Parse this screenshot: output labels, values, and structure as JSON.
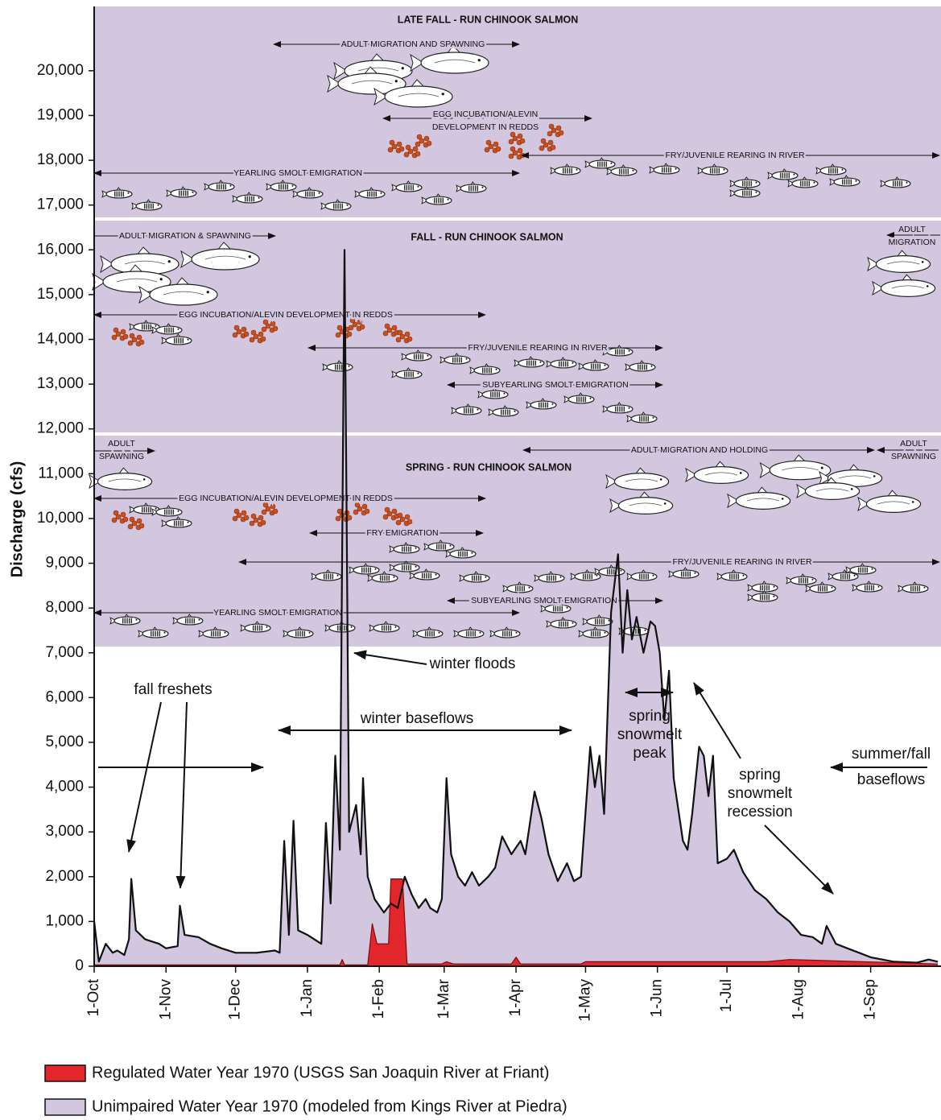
{
  "chart_data": {
    "type": "area",
    "y_label": "Discharge (cfs)",
    "xlim": [
      0,
      365
    ],
    "xticks": [
      {
        "value": 0,
        "label": "1-Oct"
      },
      {
        "value": 31,
        "label": "1-Nov"
      },
      {
        "value": 61,
        "label": "1-Dec"
      },
      {
        "value": 92,
        "label": "1-Jan"
      },
      {
        "value": 123,
        "label": "1-Feb"
      },
      {
        "value": 151,
        "label": "1-Mar"
      },
      {
        "value": 182,
        "label": "1-Apr"
      },
      {
        "value": 212,
        "label": "1-May"
      },
      {
        "value": 243,
        "label": "1-Jun"
      },
      {
        "value": 273,
        "label": "1-Jul"
      },
      {
        "value": 304,
        "label": "1-Aug"
      },
      {
        "value": 335,
        "label": "1-Sep"
      }
    ],
    "ylim": [
      0,
      21400
    ],
    "yticks": [
      0,
      {
        "value": 1000,
        "label": "1,000"
      },
      {
        "value": 2000,
        "label": "2,000"
      },
      {
        "value": 3000,
        "label": "3,000"
      },
      {
        "value": 4000,
        "label": "4,000"
      },
      {
        "value": 5000,
        "label": "5,000"
      },
      {
        "value": 6000,
        "label": "6,000"
      },
      {
        "value": 7000,
        "label": "7,000"
      },
      {
        "value": 8000,
        "label": "8,000"
      },
      {
        "value": 9000,
        "label": "9,000"
      },
      {
        "value": 10000,
        "label": "10,000"
      },
      {
        "value": 11000,
        "label": "11,000"
      },
      {
        "value": 12000,
        "label": "12,000"
      },
      {
        "value": 13000,
        "label": "13,000"
      },
      {
        "value": 14000,
        "label": "14,000"
      },
      {
        "value": 15000,
        "label": "15,000"
      },
      {
        "value": 16000,
        "label": "16,000"
      },
      {
        "value": 17000,
        "label": "17,000"
      },
      {
        "value": 18000,
        "label": "18,000"
      },
      {
        "value": 19000,
        "label": "19,000"
      },
      {
        "value": 20000,
        "label": "20,000"
      }
    ],
    "series": [
      {
        "name": "Regulated Water Year 1970 (USGS San Joaquin River at Friant)",
        "color": "#e3262b",
        "x": [
          0,
          106,
          107,
          108,
          118,
          120,
          122,
          127,
          128,
          133,
          135,
          150,
          152,
          155,
          180,
          182,
          184,
          210,
          212,
          290,
          300,
          364
        ],
        "values": [
          30,
          30,
          150,
          30,
          30,
          950,
          500,
          500,
          1950,
          1950,
          50,
          50,
          100,
          50,
          50,
          200,
          50,
          50,
          100,
          100,
          150,
          50
        ]
      },
      {
        "name": "Unimpaired Water Year 1970 (modeled from Kings River at Piedra)",
        "color": "#d3c7e0",
        "x": [
          0,
          2,
          5,
          8,
          10,
          13,
          15,
          16,
          18,
          22,
          28,
          31,
          36,
          37,
          39,
          45,
          50,
          55,
          61,
          70,
          78,
          80,
          82,
          84,
          86,
          88,
          92,
          98,
          100,
          102,
          104,
          106,
          108,
          110,
          113,
          115,
          116,
          118,
          121,
          125,
          128,
          131,
          134,
          137,
          140,
          143,
          145,
          148,
          150,
          152,
          154,
          157,
          160,
          163,
          166,
          170,
          173,
          176,
          180,
          184,
          186,
          190,
          193,
          196,
          200,
          204,
          207,
          210,
          214,
          216,
          218,
          220,
          223,
          226,
          228,
          230,
          232,
          234,
          237,
          240,
          242,
          244,
          246,
          248,
          250,
          254,
          256,
          258,
          261,
          263,
          265,
          267,
          269,
          273,
          276,
          280,
          285,
          290,
          295,
          300,
          305,
          310,
          314,
          316,
          320,
          325,
          330,
          335,
          340,
          345,
          355,
          360,
          364
        ],
        "values": [
          1000,
          100,
          500,
          300,
          350,
          250,
          600,
          1950,
          800,
          600,
          500,
          400,
          450,
          1350,
          700,
          650,
          500,
          400,
          300,
          300,
          350,
          300,
          2800,
          700,
          3250,
          800,
          700,
          500,
          3200,
          1400,
          4700,
          2600,
          16000,
          3000,
          3600,
          2500,
          4200,
          2000,
          1500,
          1200,
          1400,
          1300,
          2000,
          1600,
          1300,
          1500,
          1300,
          1200,
          1500,
          4200,
          2500,
          2000,
          1800,
          2100,
          1800,
          2000,
          2200,
          2900,
          2500,
          2800,
          2500,
          3900,
          3300,
          2500,
          1900,
          2300,
          1900,
          2000,
          4900,
          4000,
          4700,
          3400,
          7900,
          9200,
          7000,
          8400,
          7300,
          7800,
          7000,
          7700,
          7600,
          7000,
          5500,
          6600,
          4200,
          2800,
          2600,
          3400,
          4900,
          4700,
          3800,
          4700,
          2300,
          2400,
          2600,
          2100,
          1700,
          1500,
          1200,
          1000,
          700,
          650,
          500,
          900,
          500,
          400,
          300,
          200,
          150,
          100,
          80,
          150,
          100
        ]
      }
    ],
    "panel_titles": [
      "LATE FALL - RUN CHINOOK SALMON",
      "FALL - RUN CHINOOK SALMON",
      "SPRING - RUN CHINOOK SALMON"
    ],
    "annotations": [
      [
        "ADULT MIGRATION AND SPAWNING"
      ],
      [
        "EGG INCUBATION/ALEVIN",
        "DEVELOPMENT IN REDDS"
      ],
      [
        "FRY/JUVENILE REARING IN RIVER"
      ],
      [
        "YEARLING SMOLT EMIGRATION"
      ],
      [
        "ADULT MIGRATION & SPAWNING"
      ],
      [
        "ADULT",
        "MIGRATION"
      ],
      [
        "EGG INCUBATION/ALEVIN DEVELOPMENT IN REDDS"
      ],
      [
        "FRY/JUVENILE REARING IN RIVER"
      ],
      [
        "SUBYEARLING SMOLT EMIGRATION"
      ],
      [
        "ADULT",
        "SPAWNING"
      ],
      [
        "ADULT MIGRATION AND HOLDING"
      ],
      [
        "ADULT",
        "SPAWNING"
      ],
      [
        "EGG INCUBATION/ALEVIN DEVELOPMENT IN REDDS"
      ],
      [
        "FRY EMIGRATION"
      ],
      [
        "FRY/JUVENILE REARING IN RIVER"
      ],
      [
        "SUBYEARLING SMOLT EMIGRATION"
      ],
      [
        "YEARLING SMOLT EMIGRATION"
      ],
      [
        "fall freshets"
      ],
      [
        "winter floods"
      ],
      [
        "winter baseflows"
      ],
      [
        "spring",
        "snowmelt",
        "peak"
      ],
      [
        "summer/fall",
        "baseflows"
      ],
      [
        "spring",
        "snowmelt",
        "recession"
      ]
    ]
  }
}
